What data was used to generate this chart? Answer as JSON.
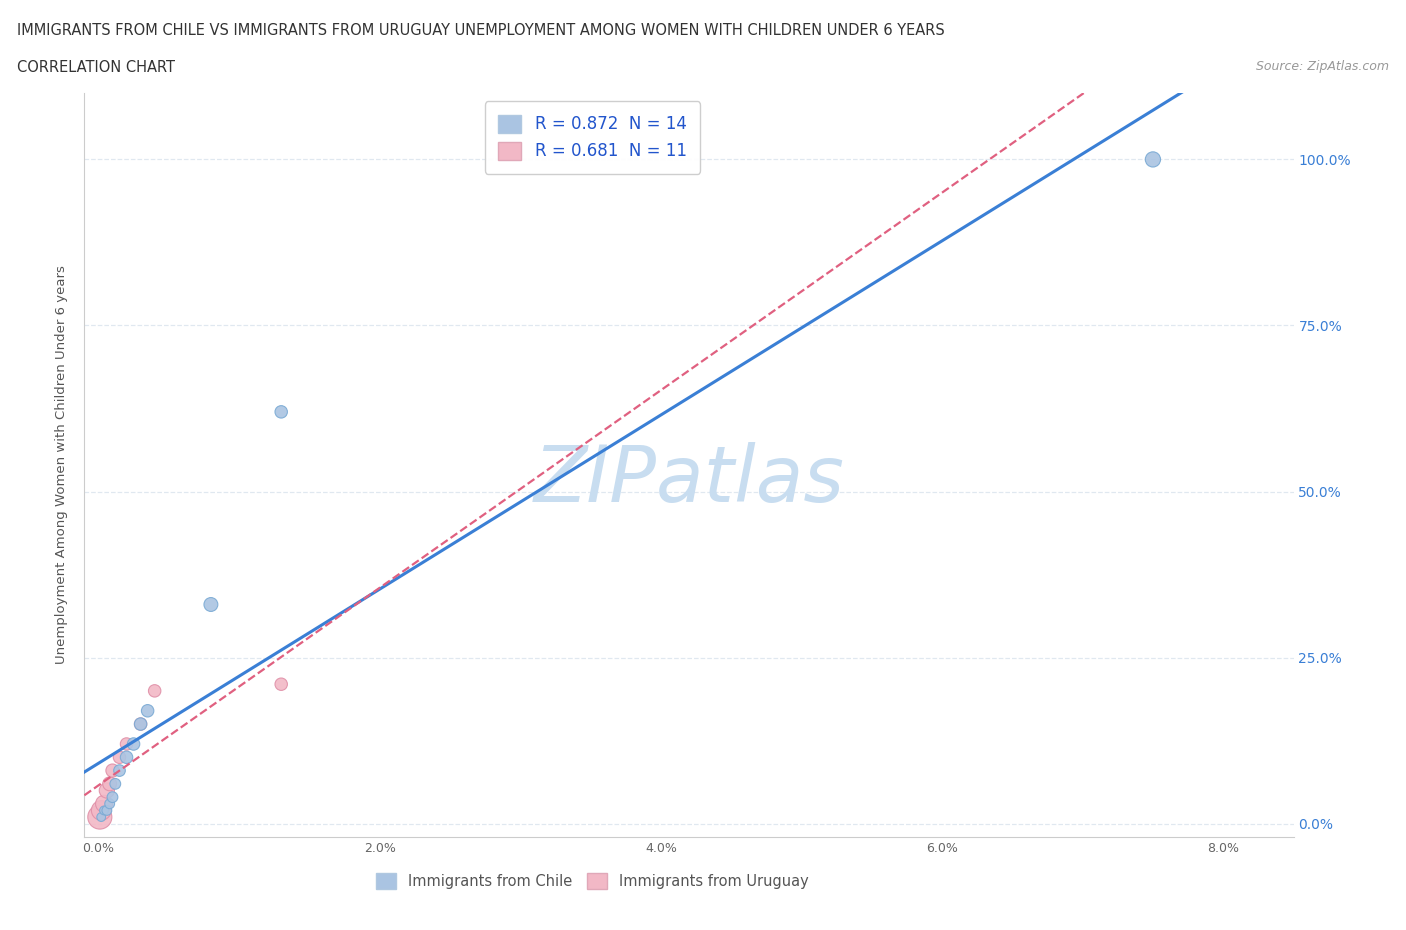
{
  "title_line1": "IMMIGRANTS FROM CHILE VS IMMIGRANTS FROM URUGUAY UNEMPLOYMENT AMONG WOMEN WITH CHILDREN UNDER 6 YEARS",
  "title_line2": "CORRELATION CHART",
  "source_text": "Source: ZipAtlas.com",
  "ylabel": "Unemployment Among Women with Children Under 6 years",
  "xlim": [
    -0.001,
    0.085
  ],
  "ylim": [
    -0.02,
    1.1
  ],
  "xticks": [
    0.0,
    0.02,
    0.04,
    0.06,
    0.08
  ],
  "xtick_labels": [
    "0.0%",
    "2.0%",
    "4.0%",
    "6.0%",
    "8.0%"
  ],
  "ytick_vals": [
    0.0,
    0.25,
    0.5,
    0.75,
    1.0
  ],
  "ytick_labels_right": [
    "0.0%",
    "25.0%",
    "50.0%",
    "75.0%",
    "100.0%"
  ],
  "chile_color": "#aac4e2",
  "chile_edge_color": "#7aaad4",
  "uruguay_color": "#f2b8c6",
  "uruguay_edge_color": "#e090a8",
  "chile_line_color": "#3a7fd5",
  "uruguay_line_color": "#e06080",
  "chile_R": 0.872,
  "chile_N": 14,
  "uruguay_R": 0.681,
  "uruguay_N": 11,
  "legend_label_chile": "Immigrants from Chile",
  "legend_label_uruguay": "Immigrants from Uruguay",
  "watermark_color": "#c8ddf0",
  "grid_color": "#e0e8f0",
  "background_color": "#ffffff",
  "chile_x": [
    0.0002,
    0.0004,
    0.0006,
    0.0008,
    0.001,
    0.0012,
    0.0015,
    0.002,
    0.0025,
    0.003,
    0.0035,
    0.008,
    0.013,
    0.075
  ],
  "chile_y": [
    0.01,
    0.02,
    0.02,
    0.03,
    0.04,
    0.06,
    0.08,
    0.1,
    0.12,
    0.15,
    0.17,
    0.33,
    0.62,
    1.0
  ],
  "uruguay_x": [
    0.0001,
    0.0002,
    0.0004,
    0.0006,
    0.0008,
    0.001,
    0.0015,
    0.002,
    0.003,
    0.004,
    0.013
  ],
  "uruguay_y": [
    0.01,
    0.02,
    0.03,
    0.05,
    0.06,
    0.08,
    0.1,
    0.12,
    0.15,
    0.2,
    0.21
  ],
  "chile_sizes": [
    40,
    40,
    50,
    50,
    60,
    60,
    70,
    80,
    80,
    80,
    80,
    100,
    80,
    120
  ],
  "uruguay_sizes": [
    300,
    200,
    150,
    120,
    100,
    90,
    80,
    80,
    80,
    80,
    80
  ]
}
